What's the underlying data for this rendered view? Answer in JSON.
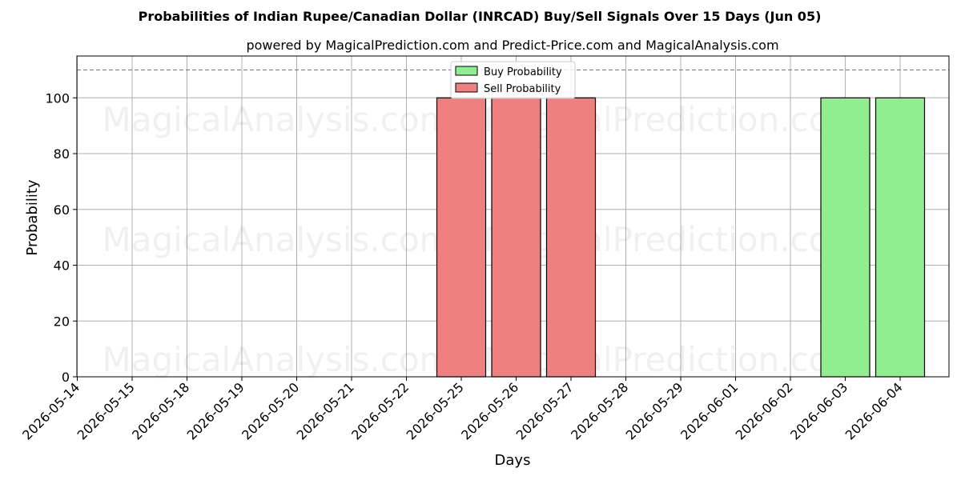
{
  "chart_data": {
    "type": "bar",
    "title": "Probabilities of Indian Rupee/Canadian Dollar (INRCAD) Buy/Sell Signals Over 15 Days (Jun 05)",
    "subtitle": "powered by MagicalPrediction.com and Predict-Price.com and MagicalAnalysis.com",
    "xlabel": "Days",
    "ylabel": "Probability",
    "categories": [
      "2026-05-14",
      "2026-05-15",
      "2026-05-18",
      "2026-05-19",
      "2026-05-20",
      "2026-05-21",
      "2026-05-22",
      "2026-05-25",
      "2026-05-26",
      "2026-05-27",
      "2026-05-28",
      "2026-05-29",
      "2026-06-01",
      "2026-06-02",
      "2026-06-03",
      "2026-06-04"
    ],
    "ylim": [
      0,
      115
    ],
    "yticks": [
      0,
      20,
      40,
      60,
      80,
      100
    ],
    "reference_line": 110,
    "grid": true,
    "legend_position": "top-center",
    "series": [
      {
        "name": "Buy Probability",
        "color": "#90ee90",
        "values": [
          0,
          0,
          0,
          0,
          0,
          0,
          0,
          0,
          0,
          0,
          0,
          0,
          0,
          0,
          100,
          100
        ]
      },
      {
        "name": "Sell Probability",
        "color": "#f08080",
        "values": [
          0,
          0,
          0,
          0,
          0,
          0,
          0,
          100,
          100,
          100,
          0,
          0,
          0,
          0,
          0,
          0
        ]
      }
    ],
    "watermarks": [
      "MagicalAnalysis.com",
      "MagicalPrediction.com"
    ]
  }
}
